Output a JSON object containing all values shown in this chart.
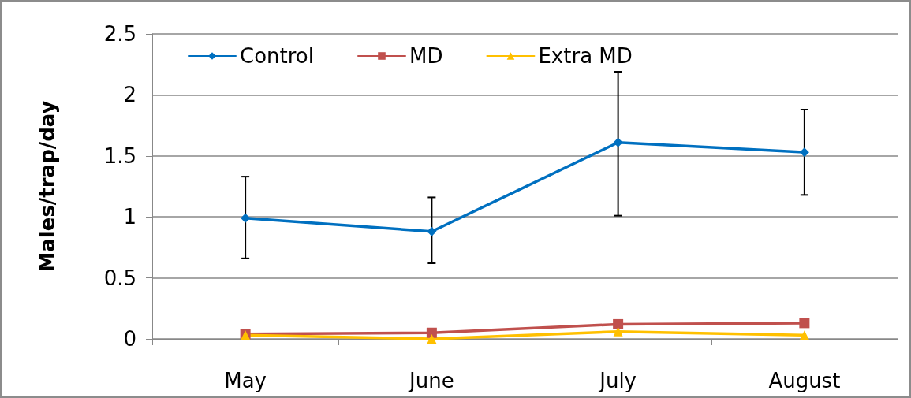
{
  "chart_data": {
    "type": "line",
    "ylabel": "Males/trap/day",
    "categories": [
      "May",
      "June",
      "July",
      "August"
    ],
    "series": [
      {
        "name": "Control",
        "color": "#0070c0",
        "marker": "diamond",
        "values": [
          0.99,
          0.88,
          1.61,
          1.53
        ],
        "errors": [
          [
            0.66,
            1.33
          ],
          [
            0.62,
            1.16
          ],
          [
            1.01,
            2.19
          ],
          [
            1.18,
            1.88
          ]
        ]
      },
      {
        "name": "MD",
        "color": "#c0504d",
        "marker": "square",
        "values": [
          0.04,
          0.05,
          0.12,
          0.13
        ]
      },
      {
        "name": "Extra MD",
        "color": "#ffc000",
        "marker": "triangle",
        "values": [
          0.03,
          0.0,
          0.06,
          0.03
        ]
      }
    ],
    "ylim": [
      0,
      2.5
    ],
    "yticks": [
      0,
      0.5,
      1,
      1.5,
      2,
      2.5
    ],
    "grid": "y",
    "legend": "top left"
  }
}
